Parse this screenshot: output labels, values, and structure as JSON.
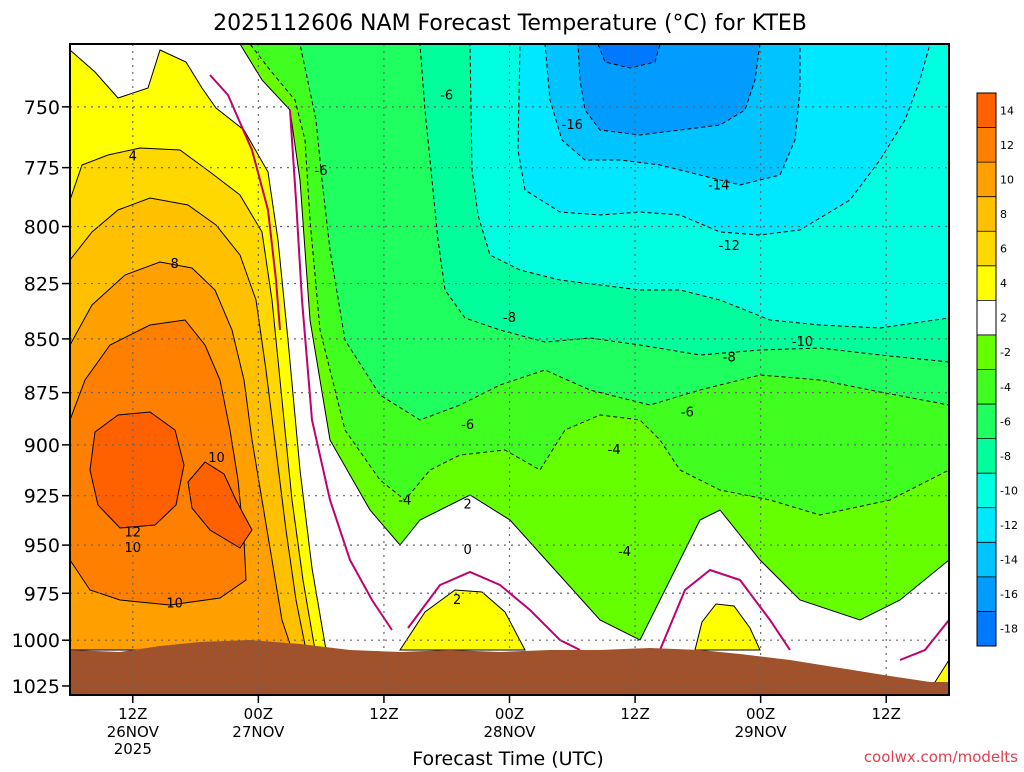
{
  "chart_data": {
    "type": "heatmap",
    "title": "2025112606 NAM Forecast Temperature (°C) for KTEB",
    "xlabel": "Forecast Time (UTC)",
    "ylabel": "",
    "y_axis": {
      "scale": "pressure (inverted, log)",
      "range": [
        1030,
        725
      ],
      "ticks": [
        750,
        775,
        800,
        825,
        850,
        875,
        900,
        925,
        950,
        975,
        1000,
        1025
      ]
    },
    "x_axis": {
      "range": [
        "2025-11-26 06Z",
        "2025-11-29 18Z"
      ],
      "ticks": [
        {
          "time": "2025-11-26 12Z",
          "label1": "12Z",
          "label2": "26NOV",
          "label3": "2025"
        },
        {
          "time": "2025-11-27 00Z",
          "label1": "00Z",
          "label2": "27NOV",
          "label3": ""
        },
        {
          "time": "2025-11-27 12Z",
          "label1": "12Z",
          "label2": "",
          "label3": ""
        },
        {
          "time": "2025-11-28 00Z",
          "label1": "00Z",
          "label2": "28NOV",
          "label3": ""
        },
        {
          "time": "2025-11-28 12Z",
          "label1": "12Z",
          "label2": "",
          "label3": ""
        },
        {
          "time": "2025-11-29 00Z",
          "label1": "00Z",
          "label2": "29NOV",
          "label3": ""
        },
        {
          "time": "2025-11-29 12Z",
          "label1": "12Z",
          "label2": "",
          "label3": ""
        }
      ]
    },
    "grid": true,
    "colorbar": {
      "levels": [
        14,
        12,
        10,
        8,
        6,
        4,
        2,
        -2,
        -4,
        -6,
        -8,
        -10,
        -12,
        -14,
        -16,
        -18
      ],
      "colors": [
        "#ff6000",
        "#ff8000",
        "#ffa000",
        "#ffc000",
        "#ffd800",
        "#ffff00",
        "#ffffff",
        "#66ff00",
        "#40ff20",
        "#20ff60",
        "#00ff9c",
        "#00ffe0",
        "#00e8ff",
        "#00c4ff",
        "#009cff",
        "#0078ff"
      ]
    },
    "contour_labels": [
      {
        "text": "-6",
        "time": "2025-11-27 18Z",
        "p": 745
      },
      {
        "text": "-6",
        "time": "2025-11-27 06Z",
        "p": 776
      },
      {
        "text": "-16",
        "time": "2025-11-28 06Z",
        "p": 757
      },
      {
        "text": "-14",
        "time": "2025-11-28 20Z",
        "p": 782
      },
      {
        "text": "-12",
        "time": "2025-11-28 21Z",
        "p": 808
      },
      {
        "text": "4",
        "time": "2025-11-26 12Z",
        "p": 770
      },
      {
        "text": "8",
        "time": "2025-11-26 16Z",
        "p": 816
      },
      {
        "text": "-8",
        "time": "2025-11-28 00Z",
        "p": 840
      },
      {
        "text": "-10",
        "time": "2025-11-29 04Z",
        "p": 851
      },
      {
        "text": "-8",
        "time": "2025-11-28 21Z",
        "p": 858
      },
      {
        "text": "-6",
        "time": "2025-11-28 17Z",
        "p": 884
      },
      {
        "text": "-6",
        "time": "2025-11-27 20Z",
        "p": 890
      },
      {
        "text": "-4",
        "time": "2025-11-28 10Z",
        "p": 902
      },
      {
        "text": "10",
        "time": "2025-11-26 20Z",
        "p": 906
      },
      {
        "text": "-4",
        "time": "2025-11-27 14Z",
        "p": 927
      },
      {
        "text": "2",
        "time": "2025-11-27 20Z",
        "p": 929
      },
      {
        "text": "12",
        "time": "2025-11-26 12Z",
        "p": 943
      },
      {
        "text": "10",
        "time": "2025-11-26 12Z",
        "p": 951
      },
      {
        "text": "0",
        "time": "2025-11-27 20Z",
        "p": 952
      },
      {
        "text": "-4",
        "time": "2025-11-28 11Z",
        "p": 953
      },
      {
        "text": "2",
        "time": "2025-11-27 19Z",
        "p": 978
      },
      {
        "text": "10",
        "time": "2025-11-26 16Z",
        "p": 980
      }
    ]
  },
  "colorbar_tick_labels": [
    "14",
    "12",
    "10",
    "8",
    "6",
    "4",
    "2",
    "-2",
    "-4",
    "-6",
    "-8",
    "-10",
    "-12",
    "-14",
    "-16",
    "-18"
  ],
  "watermark": "coolwx.com/modelts"
}
